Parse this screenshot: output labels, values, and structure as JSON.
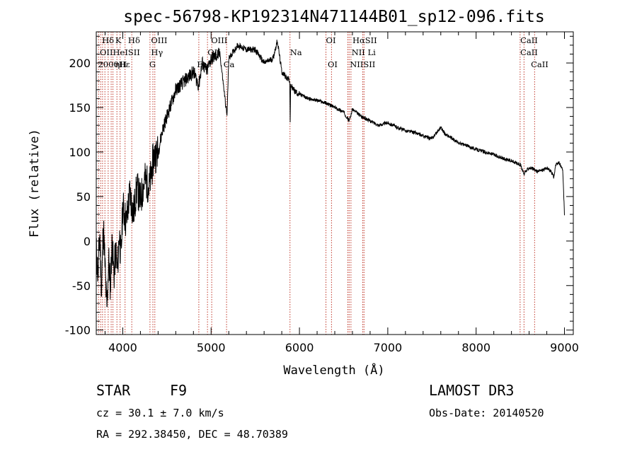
{
  "chart_data": {
    "type": "line",
    "title": "spec-56798-KP192314N471144B01_sp12-096.fits",
    "xlabel": "Wavelength (Å)",
    "ylabel": "Flux (relative)",
    "xlim": [
      3700,
      9100
    ],
    "ylim": [
      -105,
      235
    ],
    "x_ticks": [
      4000,
      5000,
      6000,
      7000,
      8000,
      9000
    ],
    "y_ticks": [
      -100,
      -50,
      0,
      50,
      100,
      150,
      200
    ],
    "series": [
      {
        "name": "flux",
        "x": [
          3700,
          3720,
          3740,
          3760,
          3780,
          3800,
          3820,
          3840,
          3860,
          3880,
          3900,
          3920,
          3940,
          3960,
          3980,
          4000,
          4040,
          4080,
          4120,
          4160,
          4200,
          4250,
          4300,
          4350,
          4400,
          4450,
          4500,
          4600,
          4700,
          4800,
          4860,
          4900,
          4950,
          5000,
          5100,
          5180,
          5200,
          5300,
          5400,
          5500,
          5600,
          5700,
          5750,
          5800,
          5890,
          5895,
          5900,
          5950,
          6000,
          6100,
          6200,
          6300,
          6400,
          6500,
          6563,
          6600,
          6700,
          6800,
          6900,
          7000,
          7100,
          7200,
          7300,
          7400,
          7500,
          7600,
          7650,
          7700,
          7800,
          7900,
          8000,
          8100,
          8200,
          8300,
          8400,
          8500,
          8540,
          8600,
          8660,
          8700,
          8800,
          8850,
          8880,
          8900,
          8940,
          8980,
          9000
        ],
        "y": [
          -10,
          -40,
          10,
          -60,
          20,
          -30,
          -80,
          -20,
          -50,
          0,
          -40,
          -10,
          -35,
          10,
          -20,
          40,
          20,
          55,
          30,
          60,
          45,
          70,
          60,
          95,
          100,
          125,
          140,
          170,
          180,
          190,
          175,
          200,
          190,
          205,
          210,
          140,
          205,
          220,
          215,
          215,
          200,
          205,
          225,
          190,
          180,
          130,
          175,
          168,
          165,
          160,
          158,
          155,
          150,
          145,
          135,
          148,
          140,
          135,
          130,
          133,
          128,
          124,
          122,
          118,
          115,
          128,
          120,
          117,
          110,
          107,
          103,
          100,
          97,
          93,
          90,
          86,
          75,
          83,
          80,
          78,
          82,
          78,
          72,
          85,
          88,
          80,
          30
        ]
      }
    ],
    "emission_lines": [
      {
        "label": "Hδ",
        "x": 3765,
        "row": 1
      },
      {
        "label": "K",
        "x": 3915,
        "row": 1
      },
      {
        "label": "Hδ",
        "x": 4060,
        "row": 1
      },
      {
        "label": "OIII",
        "x": 4320,
        "row": 1
      },
      {
        "label": "OIII",
        "x": 5000,
        "row": 1
      },
      {
        "label": "OI",
        "x": 6300,
        "row": 1
      },
      {
        "label": "HαSII",
        "x": 6600,
        "row": 1
      },
      {
        "label": "CaII",
        "x": 8500,
        "row": 1
      },
      {
        "label": "OIIHeISII",
        "x": 3740,
        "row": 2
      },
      {
        "label": "Hγ",
        "x": 4320,
        "row": 2
      },
      {
        "label": "OII",
        "x": 4960,
        "row": 2
      },
      {
        "label": "Na",
        "x": 5893,
        "row": 2
      },
      {
        "label": "NII Li",
        "x": 6590,
        "row": 2
      },
      {
        "label": "CaII",
        "x": 8500,
        "row": 2
      },
      {
        "label": "2000Hε",
        "x": 3720,
        "row": 3
      },
      {
        "label": "ηH",
        "x": 3910,
        "row": 3
      },
      {
        "label": "G",
        "x": 4300,
        "row": 3
      },
      {
        "label": "Fe",
        "x": 4840,
        "row": 3
      },
      {
        "label": "Ca",
        "x": 5140,
        "row": 3
      },
      {
        "label": "OI",
        "x": 6320,
        "row": 3
      },
      {
        "label": "NIISII",
        "x": 6570,
        "row": 3
      },
      {
        "label": "CaII",
        "x": 8620,
        "row": 3
      }
    ],
    "line_markers": [
      3726,
      3750,
      3771,
      3798,
      3835,
      3869,
      3889,
      3934,
      3970,
      4026,
      4102,
      4308,
      4341,
      4363,
      4861,
      4959,
      5007,
      5175,
      5893,
      6300,
      6363,
      6548,
      6563,
      6583,
      6717,
      6731,
      8498,
      8542,
      8662
    ]
  },
  "info": {
    "class_label": "STAR",
    "subclass": "F9",
    "survey": "LAMOST DR3",
    "cz": "cz = 30.1 ± 7.0 km/s",
    "obs_date": "Obs-Date: 20140520",
    "coords": "RA = 292.38450, DEC =  48.70389"
  },
  "colors": {
    "line_marker": "#c0392b",
    "spectrum": "#000000",
    "axes": "#000000"
  }
}
